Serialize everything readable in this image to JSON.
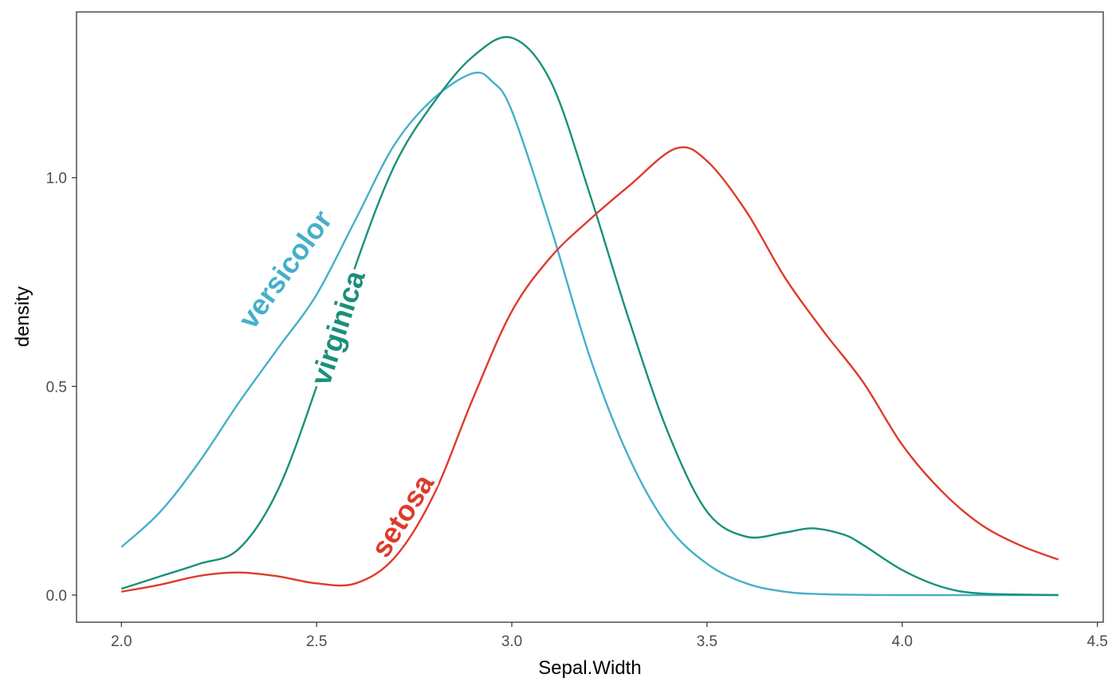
{
  "chart_data": {
    "type": "line",
    "xlabel": "Sepal.Width",
    "ylabel": "density",
    "xlim": [
      1.885,
      4.515
    ],
    "ylim": [
      -0.065,
      1.397
    ],
    "x_ticks": [
      {
        "value": 2.0,
        "label": "2.0"
      },
      {
        "value": 2.5,
        "label": "2.5"
      },
      {
        "value": 3.0,
        "label": "3.0"
      },
      {
        "value": 3.5,
        "label": "3.5"
      },
      {
        "value": 4.0,
        "label": "4.0"
      },
      {
        "value": 4.5,
        "label": "4.5"
      }
    ],
    "y_ticks": [
      {
        "value": 0.0,
        "label": "0.0"
      },
      {
        "value": 0.5,
        "label": "0.5"
      },
      {
        "value": 1.0,
        "label": "1.0"
      }
    ],
    "grid": false,
    "legend": "none (labels placed directly on curves)",
    "series": [
      {
        "name": "versicolor",
        "color": "#45AFCB",
        "label_at": [
          2.42,
          0.78
        ],
        "points": [
          [
            2.0,
            0.115
          ],
          [
            2.1,
            0.2
          ],
          [
            2.2,
            0.32
          ],
          [
            2.3,
            0.46
          ],
          [
            2.4,
            0.59
          ],
          [
            2.5,
            0.72
          ],
          [
            2.6,
            0.9
          ],
          [
            2.7,
            1.08
          ],
          [
            2.8,
            1.19
          ],
          [
            2.9,
            1.25
          ],
          [
            2.95,
            1.23
          ],
          [
            3.0,
            1.16
          ],
          [
            3.1,
            0.88
          ],
          [
            3.2,
            0.57
          ],
          [
            3.3,
            0.33
          ],
          [
            3.4,
            0.165
          ],
          [
            3.5,
            0.075
          ],
          [
            3.6,
            0.028
          ],
          [
            3.7,
            0.008
          ],
          [
            3.8,
            0.002
          ],
          [
            4.0,
            0.0
          ],
          [
            4.4,
            0.0
          ]
        ]
      },
      {
        "name": "virginica",
        "color": "#1A9079",
        "label_at": [
          2.555,
          0.64
        ],
        "points": [
          [
            2.0,
            0.015
          ],
          [
            2.1,
            0.045
          ],
          [
            2.2,
            0.075
          ],
          [
            2.3,
            0.11
          ],
          [
            2.4,
            0.25
          ],
          [
            2.5,
            0.5
          ],
          [
            2.6,
            0.79
          ],
          [
            2.7,
            1.03
          ],
          [
            2.8,
            1.18
          ],
          [
            2.9,
            1.29
          ],
          [
            3.0,
            1.335
          ],
          [
            3.1,
            1.23
          ],
          [
            3.2,
            0.96
          ],
          [
            3.3,
            0.66
          ],
          [
            3.4,
            0.39
          ],
          [
            3.5,
            0.2
          ],
          [
            3.6,
            0.14
          ],
          [
            3.7,
            0.15
          ],
          [
            3.77,
            0.16
          ],
          [
            3.85,
            0.145
          ],
          [
            3.9,
            0.12
          ],
          [
            4.0,
            0.06
          ],
          [
            4.1,
            0.02
          ],
          [
            4.2,
            0.004
          ],
          [
            4.4,
            0.0
          ]
        ]
      },
      {
        "name": "setosa",
        "color": "#DE3B2B",
        "label_at": [
          2.72,
          0.19
        ],
        "points": [
          [
            2.0,
            0.008
          ],
          [
            2.1,
            0.025
          ],
          [
            2.2,
            0.046
          ],
          [
            2.3,
            0.054
          ],
          [
            2.4,
            0.045
          ],
          [
            2.5,
            0.028
          ],
          [
            2.6,
            0.028
          ],
          [
            2.7,
            0.09
          ],
          [
            2.8,
            0.24
          ],
          [
            2.9,
            0.47
          ],
          [
            3.0,
            0.68
          ],
          [
            3.1,
            0.81
          ],
          [
            3.2,
            0.9
          ],
          [
            3.3,
            0.98
          ],
          [
            3.42,
            1.07
          ],
          [
            3.5,
            1.04
          ],
          [
            3.6,
            0.92
          ],
          [
            3.7,
            0.76
          ],
          [
            3.8,
            0.63
          ],
          [
            3.9,
            0.51
          ],
          [
            4.0,
            0.36
          ],
          [
            4.1,
            0.25
          ],
          [
            4.2,
            0.17
          ],
          [
            4.3,
            0.12
          ],
          [
            4.4,
            0.085
          ]
        ]
      }
    ]
  }
}
